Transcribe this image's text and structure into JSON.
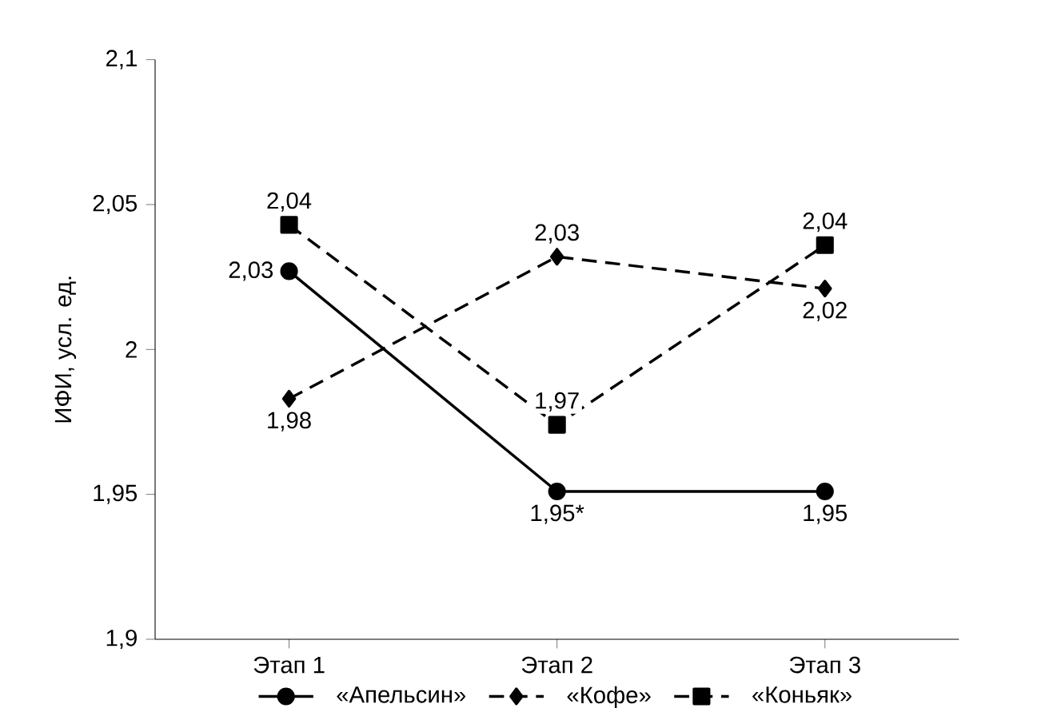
{
  "chart_data": {
    "type": "line",
    "categories": [
      "Этап 1",
      "Этап 2",
      "Этап 3"
    ],
    "ylabel": "ИФИ, усл. ед.",
    "ylim": [
      1.9,
      2.1
    ],
    "yticks": [
      {
        "value": 1.9,
        "label": "1,9"
      },
      {
        "value": 1.95,
        "label": "1,95"
      },
      {
        "value": 2,
        "label": "2"
      },
      {
        "value": 2.05,
        "label": "2,05"
      },
      {
        "value": 2.1,
        "label": "2,1"
      }
    ],
    "grid": false,
    "legend": "bottom",
    "series": [
      {
        "name": "«Апельсин»",
        "color": "#000000",
        "marker": "circle",
        "line_style": "solid",
        "values": [
          2.027,
          1.951,
          1.951
        ],
        "value_labels": [
          "2,03",
          "1,95*",
          "1,95"
        ]
      },
      {
        "name": "«Кофе»",
        "color": "#000000",
        "marker": "diamond",
        "line_style": "dashed",
        "values": [
          1.983,
          2.032,
          2.021
        ],
        "value_labels": [
          "1,98",
          "2,03",
          "2,02"
        ]
      },
      {
        "name": "«Коньяк»",
        "color": "#000000",
        "marker": "square",
        "line_style": "dashed",
        "values": [
          2.043,
          1.974,
          2.036
        ],
        "value_labels": [
          "2,04",
          "1,97",
          "2,04"
        ]
      }
    ]
  }
}
